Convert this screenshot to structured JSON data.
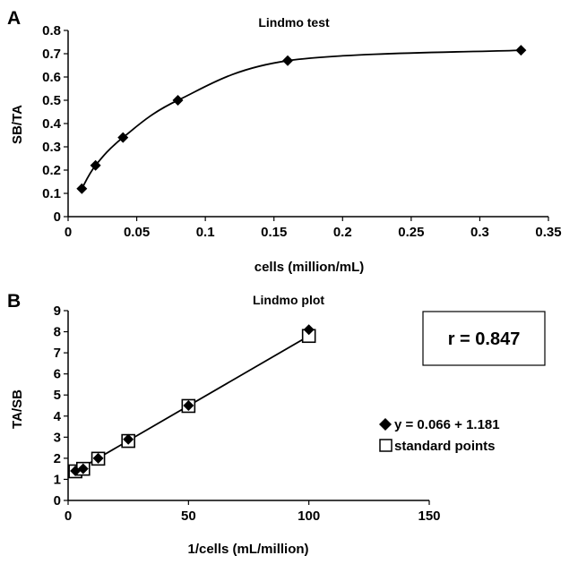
{
  "chart_data": [
    {
      "panel_label": "A",
      "type": "line",
      "title": "Lindmo test",
      "xlabel": "cells (million/mL)",
      "ylabel": "SB/TA",
      "xlim": [
        0,
        0.35
      ],
      "ylim": [
        0,
        0.8
      ],
      "xticks": [
        "0",
        "0.05",
        "0.1",
        "0.15",
        "0.2",
        "0.25",
        "0.3",
        "0.35"
      ],
      "yticks": [
        "0",
        "0.1",
        "0.2",
        "0.3",
        "0.4",
        "0.5",
        "0.6",
        "0.7",
        "0.8"
      ],
      "grid": false,
      "series": [
        {
          "x": [
            0.01,
            0.02,
            0.04,
            0.08,
            0.16,
            0.33
          ],
          "values": [
            0.12,
            0.22,
            0.34,
            0.5,
            0.67,
            0.715
          ]
        }
      ]
    },
    {
      "panel_label": "B",
      "type": "scatter",
      "title": "Lindmo plot",
      "xlabel": "1/cells (mL/million)",
      "ylabel": "TA/SB",
      "xlim": [
        0,
        150
      ],
      "ylim": [
        0,
        9
      ],
      "xticks": [
        "0",
        "50",
        "100",
        "150"
      ],
      "yticks": [
        "0",
        "1",
        "2",
        "3",
        "4",
        "5",
        "6",
        "7",
        "8",
        "9"
      ],
      "grid": false,
      "annotation": "r = 0.847",
      "legend_position": "right",
      "series": [
        {
          "name": "y = 0.066 + 1.181",
          "marker": "filled-diamond",
          "x": [
            3.03,
            6.25,
            12.5,
            25,
            50,
            100
          ],
          "values": [
            1.4,
            1.5,
            2.0,
            2.9,
            4.5,
            8.1
          ]
        },
        {
          "name": "standard points",
          "marker": "open-square",
          "x": [
            3.03,
            6.25,
            12.5,
            25,
            50,
            100
          ],
          "values": [
            1.38,
            1.5,
            1.98,
            2.82,
            4.48,
            7.8
          ]
        }
      ],
      "fit_line": {
        "x": [
          3.03,
          100
        ],
        "values": [
          1.38,
          7.8
        ]
      }
    }
  ]
}
